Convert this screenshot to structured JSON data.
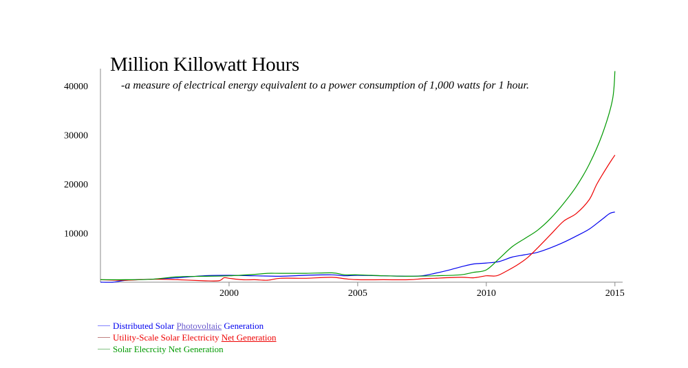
{
  "chart_data": {
    "type": "line",
    "title": "Million Killowatt Hours",
    "subtitle": "-a measure of electrical energy equivalent to a power consumption of 1,000 watts for 1 hour.",
    "x_ticks": [
      "2000",
      "2005",
      "2010",
      "2015"
    ],
    "y_ticks": [
      "10000",
      "20000",
      "30000",
      "40000"
    ],
    "xlim": [
      1995,
      2015.3
    ],
    "ylim": [
      0,
      44000
    ],
    "series": [
      {
        "name": "Distributed Solar Photovoltaic Generation",
        "label_parts": [
          "Distributed Solar ",
          "Photovoltaic",
          " Generation"
        ],
        "color": "#0000ee",
        "points": [
          [
            1995,
            0
          ],
          [
            1995.5,
            0
          ],
          [
            1996,
            400
          ],
          [
            1997,
            600
          ],
          [
            1998,
            900
          ],
          [
            1999,
            1300
          ],
          [
            2000,
            1400
          ],
          [
            2001,
            1300
          ],
          [
            2002,
            1200
          ],
          [
            2003,
            1400
          ],
          [
            2004,
            1500
          ],
          [
            2004.5,
            1300
          ],
          [
            2005,
            1400
          ],
          [
            2006,
            1300
          ],
          [
            2007,
            1200
          ],
          [
            2007.5,
            1300
          ],
          [
            2008,
            1800
          ],
          [
            2008.5,
            2400
          ],
          [
            2009,
            3100
          ],
          [
            2009.5,
            3700
          ],
          [
            2010,
            3900
          ],
          [
            2010.5,
            4200
          ],
          [
            2011,
            5100
          ],
          [
            2011.5,
            5600
          ],
          [
            2012,
            6100
          ],
          [
            2012.5,
            7000
          ],
          [
            2013,
            8100
          ],
          [
            2013.5,
            9400
          ],
          [
            2014,
            10800
          ],
          [
            2014.5,
            12800
          ],
          [
            2014.8,
            14000
          ],
          [
            2015,
            14300
          ]
        ]
      },
      {
        "name": "Utility-Scale Solar Electricity Net Generation",
        "label_parts": [
          "Utility-Scale Solar Electricity ",
          "Net Generation",
          ""
        ],
        "color": "#ee0000",
        "points": [
          [
            1995,
            500
          ],
          [
            1996,
            400
          ],
          [
            1997,
            600
          ],
          [
            1998,
            500
          ],
          [
            1999,
            300
          ],
          [
            1999.6,
            300
          ],
          [
            1999.8,
            900
          ],
          [
            2000,
            800
          ],
          [
            2000.5,
            500
          ],
          [
            2001,
            500
          ],
          [
            2001.5,
            400
          ],
          [
            2002,
            800
          ],
          [
            2003,
            800
          ],
          [
            2004,
            1000
          ],
          [
            2004.5,
            700
          ],
          [
            2005,
            500
          ],
          [
            2006,
            500
          ],
          [
            2007,
            500
          ],
          [
            2007.5,
            700
          ],
          [
            2008,
            800
          ],
          [
            2009,
            1000
          ],
          [
            2009.5,
            900
          ],
          [
            2010,
            1300
          ],
          [
            2010.4,
            1300
          ],
          [
            2010.8,
            2300
          ],
          [
            2011.2,
            3500
          ],
          [
            2011.6,
            5000
          ],
          [
            2012,
            7000
          ],
          [
            2012.5,
            9700
          ],
          [
            2013,
            12400
          ],
          [
            2013.5,
            14000
          ],
          [
            2014,
            16800
          ],
          [
            2014.3,
            20000
          ],
          [
            2014.7,
            23500
          ],
          [
            2015,
            25900
          ]
        ]
      },
      {
        "name": "Solar Elecrcity Net Generation",
        "label_parts": [
          "Solar Elecrcity Net Generation",
          "",
          ""
        ],
        "color": "#009900",
        "points": [
          [
            1995,
            500
          ],
          [
            1996,
            500
          ],
          [
            1997,
            600
          ],
          [
            1998,
            1100
          ],
          [
            1999,
            1200
          ],
          [
            2000,
            1300
          ],
          [
            2001,
            1600
          ],
          [
            2001.5,
            1800
          ],
          [
            2002,
            1800
          ],
          [
            2003,
            1800
          ],
          [
            2004,
            1900
          ],
          [
            2004.5,
            1500
          ],
          [
            2005,
            1500
          ],
          [
            2006,
            1300
          ],
          [
            2007,
            1200
          ],
          [
            2008,
            1300
          ],
          [
            2009,
            1500
          ],
          [
            2009.5,
            2000
          ],
          [
            2010,
            2500
          ],
          [
            2010.5,
            4800
          ],
          [
            2011,
            7200
          ],
          [
            2011.5,
            8900
          ],
          [
            2012,
            10600
          ],
          [
            2012.5,
            13000
          ],
          [
            2013,
            16000
          ],
          [
            2013.5,
            19500
          ],
          [
            2014,
            24000
          ],
          [
            2014.5,
            30000
          ],
          [
            2014.9,
            37000
          ],
          [
            2015,
            43000
          ]
        ]
      }
    ]
  }
}
